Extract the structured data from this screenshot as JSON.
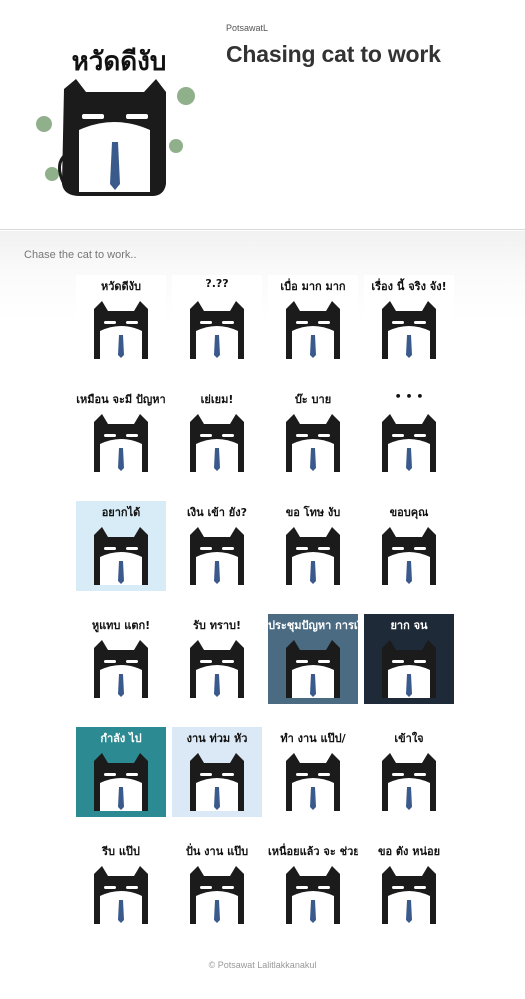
{
  "header": {
    "author": "PotsawatL",
    "title": "Chasing cat to work",
    "main_sticker_caption": "หวัดดีงับ"
  },
  "description": "Chase the cat to work..",
  "stickers": [
    {
      "caption": "หวัดดีงับ",
      "bg": "#ffffff"
    },
    {
      "caption": "?.??",
      "bg": "#ffffff"
    },
    {
      "caption": "เบื่อ มาก มาก",
      "bg": "#ffffff"
    },
    {
      "caption": "เรื่อง นี้ จริง จัง!",
      "bg": "#ffffff"
    },
    {
      "caption": "เหมือน จะมี ปัญหา",
      "bg": "#ffffff"
    },
    {
      "caption": "เย่เยม!",
      "bg": "#ffffff"
    },
    {
      "caption": "บ๊ะ บาย",
      "bg": "#ffffff"
    },
    {
      "caption": "• • •",
      "bg": "#ffffff"
    },
    {
      "caption": "อยากได้",
      "bg": "#d8ecf7"
    },
    {
      "caption": "เงิน เข้า ยัง?",
      "bg": "#ffffff"
    },
    {
      "caption": "ขอ โทษ งับ",
      "bg": "#ffffff"
    },
    {
      "caption": "ขอบคุณ",
      "bg": "#ffffff"
    },
    {
      "caption": "หูแทบ แตก!",
      "bg": "#ffffff"
    },
    {
      "caption": "รับ ทราบ!",
      "bg": "#ffffff"
    },
    {
      "caption": "ประชุมปัญหา การเงิน",
      "bg": "#4a6b82"
    },
    {
      "caption": "ยาก จน",
      "bg": "#1f2a38"
    },
    {
      "caption": "กำลัง ไป",
      "bg": "#2c8a92"
    },
    {
      "caption": "งาน ท่วม หัว",
      "bg": "#dbe8f5"
    },
    {
      "caption": "ทำ งาน แป๊ป/",
      "bg": "#ffffff"
    },
    {
      "caption": "เข้าใจ",
      "bg": "#ffffff"
    },
    {
      "caption": "รีบ แป๊ป",
      "bg": "#ffffff"
    },
    {
      "caption": "ปั่น งาน แป๊บ",
      "bg": "#ffffff"
    },
    {
      "caption": "เหนื่อยแล้ว จะ ช่วย",
      "bg": "#ffffff"
    },
    {
      "caption": "ขอ ตัง หน่อย",
      "bg": "#ffffff"
    }
  ],
  "copyright": "© Potsawat Lalitlakkanakul"
}
